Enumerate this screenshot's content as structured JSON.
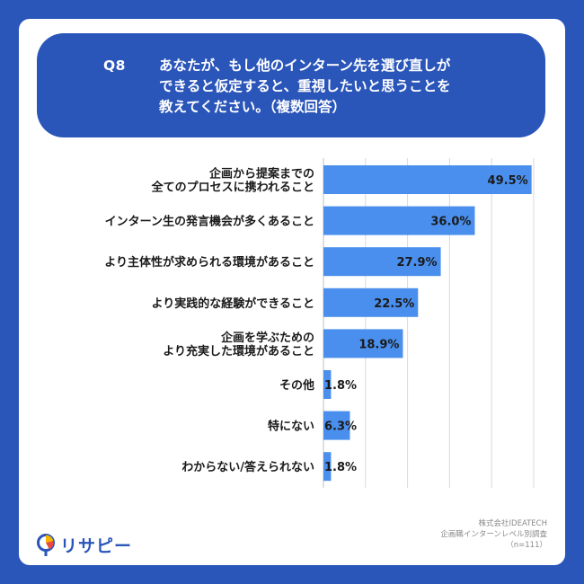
{
  "question": {
    "number": "Q8",
    "lines": [
      "あなたが、もし他のインターン先を選び直しが",
      "できると仮定すると、重視したいと思うことを",
      "教えてください。（複数回答）"
    ]
  },
  "chart_data": {
    "type": "bar",
    "orientation": "horizontal",
    "categories": [
      [
        "企画から提案までの",
        "全てのプロセスに携われること"
      ],
      [
        "インターン生の発言機会が多くあること"
      ],
      [
        "より主体性が求められる環境があること"
      ],
      [
        "より実践的な経験ができること"
      ],
      [
        "企画を学ぶための",
        "より充実した環境があること"
      ],
      [
        "その他"
      ],
      [
        "特にない"
      ],
      [
        "わからない/答えられない"
      ]
    ],
    "values": [
      49.5,
      36.0,
      27.9,
      22.5,
      18.9,
      1.8,
      6.3,
      1.8
    ],
    "value_labels": [
      "49.5%",
      "36.0%",
      "27.9%",
      "22.5%",
      "18.9%",
      "1.8%",
      "6.3%",
      "1.8%"
    ],
    "xlim": [
      0,
      50
    ],
    "grid": true,
    "bar_color": "#4a8fed"
  },
  "logo": {
    "text": "リサピー"
  },
  "source": {
    "lines": [
      "株式会社IDEATECH",
      "企画職インターンレベル別調査",
      "（n=111）"
    ]
  },
  "colors": {
    "background": "#2a55b9",
    "card": "#ffffff",
    "bar": "#4a8fed",
    "grid": "#d9d9d9"
  }
}
